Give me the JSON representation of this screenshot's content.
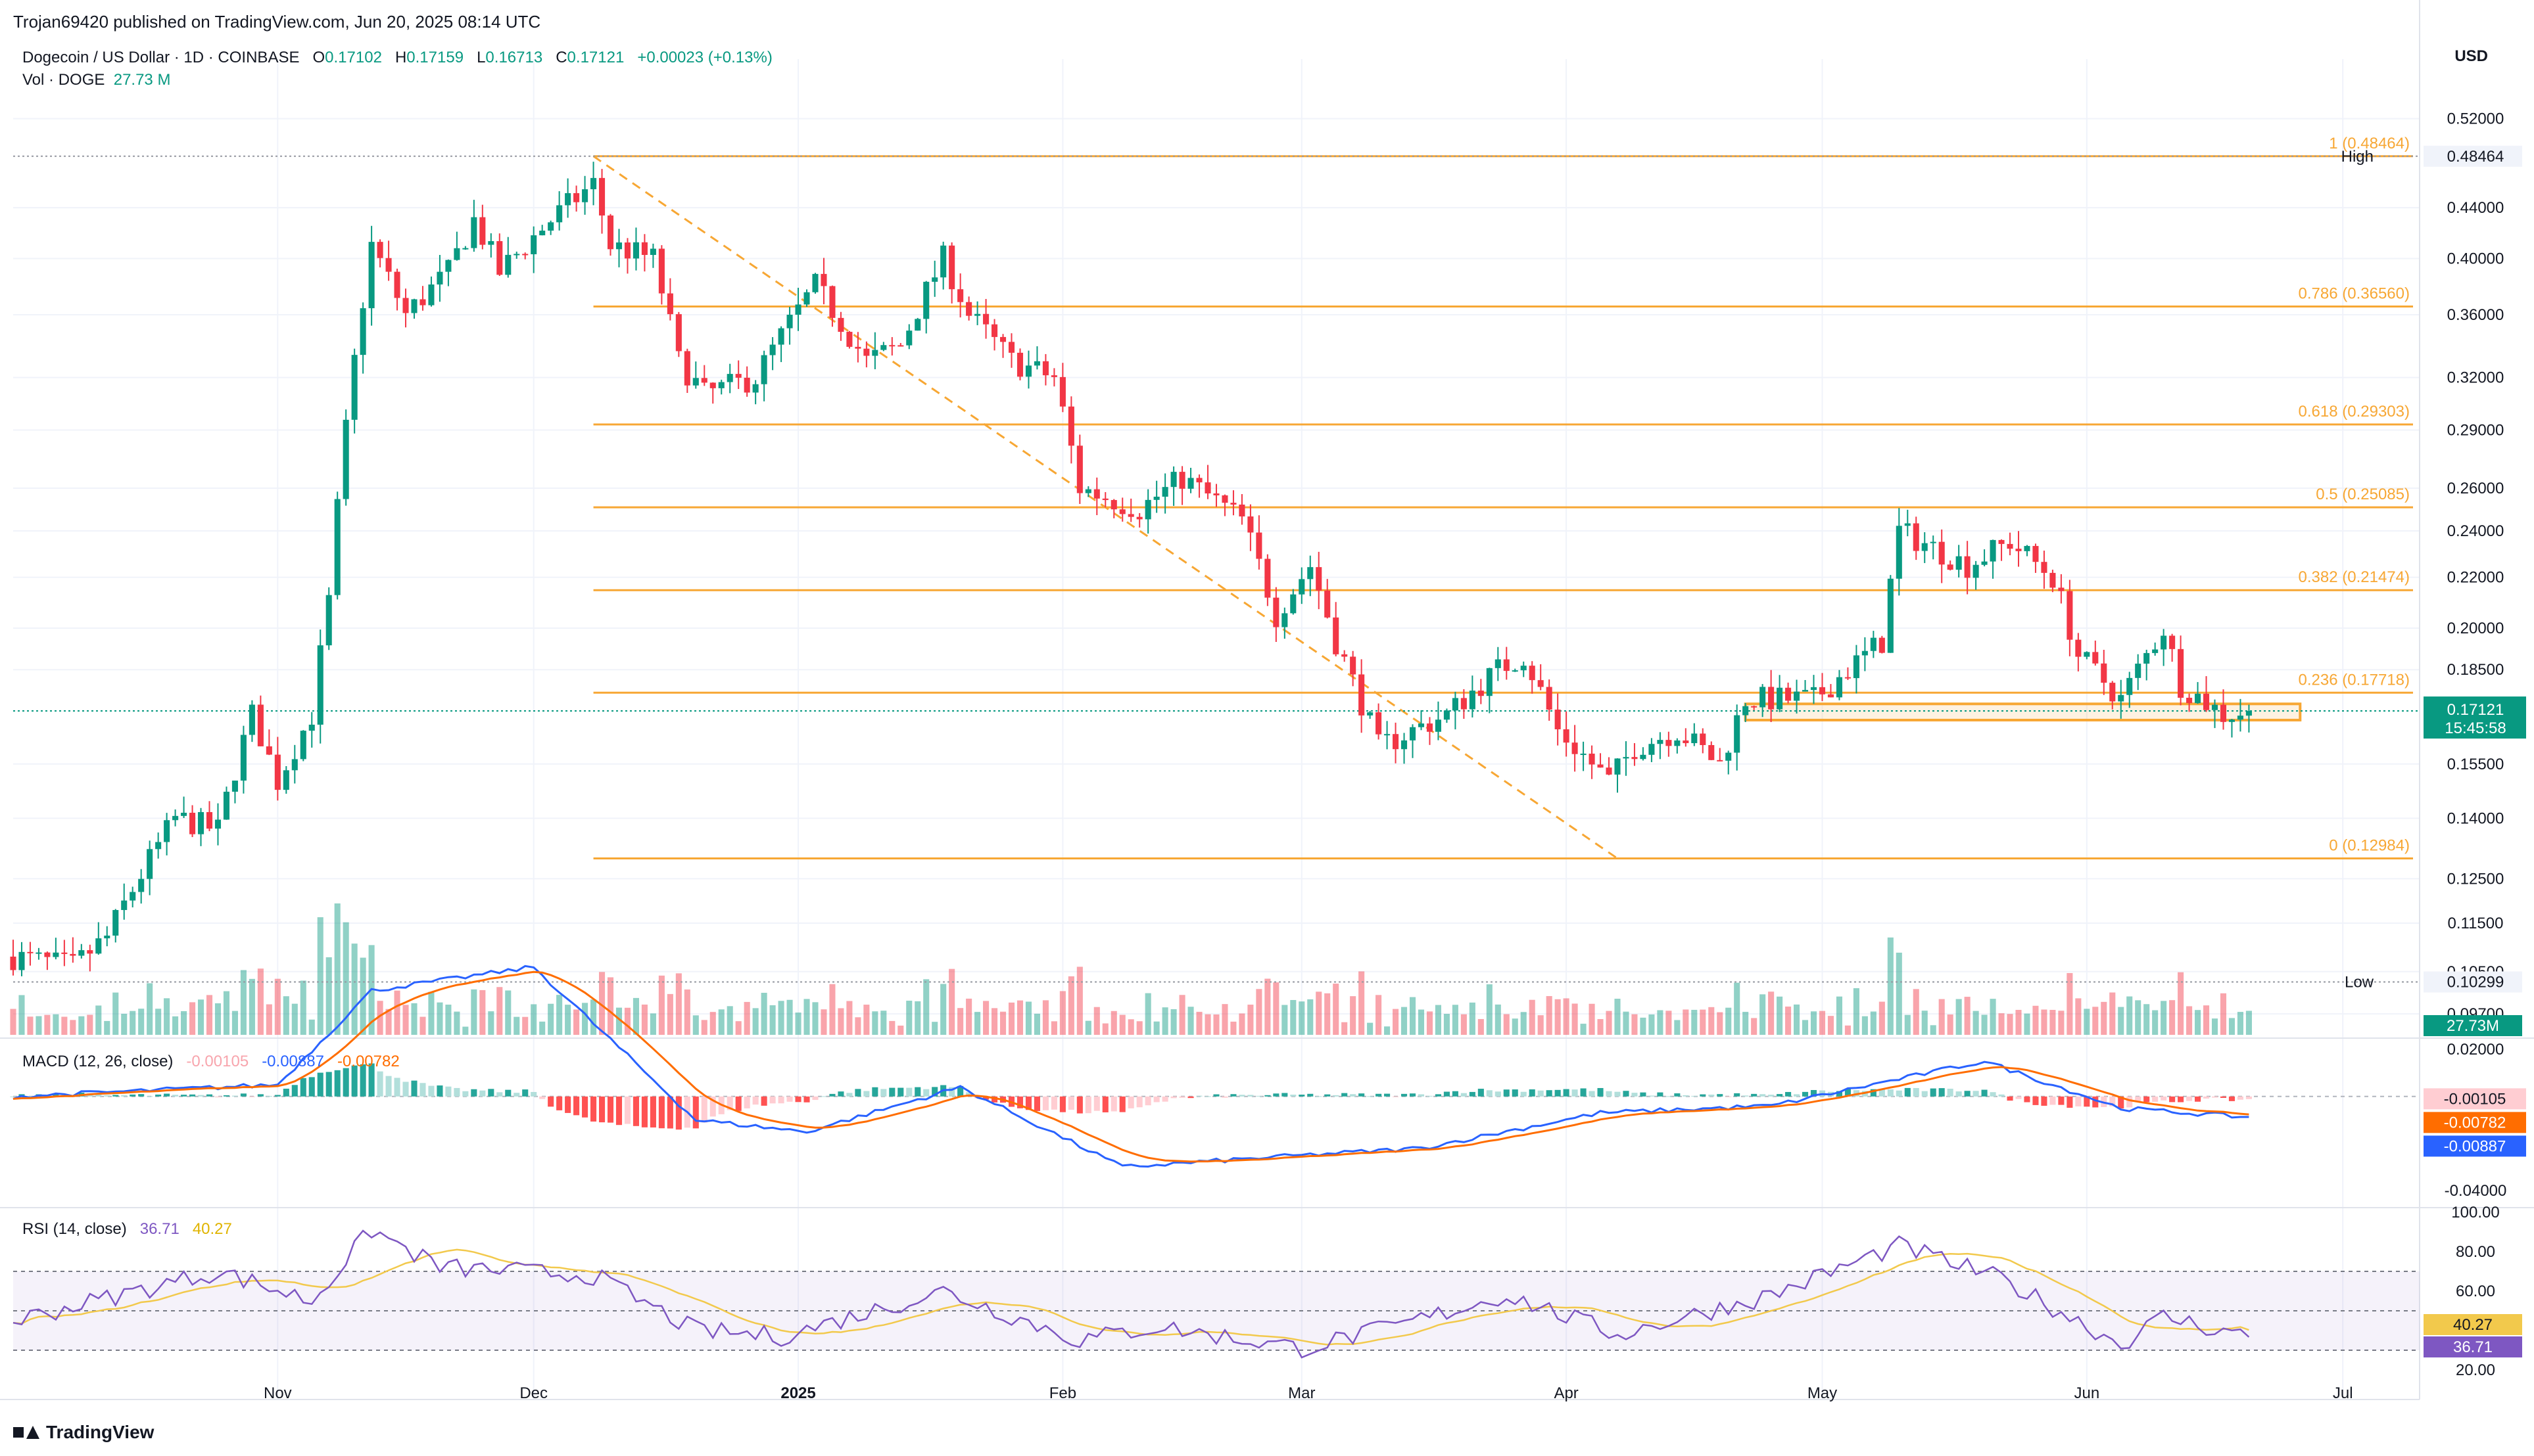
{
  "header": {
    "published": "Trojan69420 published on TradingView.com, Jun 20, 2025 08:14 UTC",
    "symbol": "Dogecoin / US Dollar · 1D · COINBASE",
    "o_label": "O",
    "o": "0.17102",
    "h_label": "H",
    "h": "0.17159",
    "l_label": "L",
    "l": "0.16713",
    "c_label": "C",
    "c": "0.17121",
    "change": "+0.00023 (+0.13%)",
    "vol_label": "Vol · DOGE",
    "vol_value": "27.73 M",
    "currency": "USD",
    "brand": "TradingView"
  },
  "colors": {
    "up": "#089981",
    "down": "#f23645",
    "fib": "#f7a734",
    "macd": "#2962ff",
    "signal": "#ff6d00",
    "rsi": "#7e57c2",
    "rsi_ma": "#f2c94c"
  },
  "chart_data": [
    {
      "type": "candlestick",
      "title": "Dogecoin / US Dollar · 1D · COINBASE",
      "y_axis": {
        "scale": "log",
        "ticks": [
          "0.52000",
          "0.48464",
          "0.44000",
          "0.40000",
          "0.36000",
          "0.32000",
          "0.29000",
          "0.26000",
          "0.24000",
          "0.22000",
          "0.20000",
          "0.18500",
          "0.17121",
          "0.15500",
          "0.14000",
          "0.12500",
          "0.11500",
          "0.10500",
          "0.10299",
          "0.09700"
        ]
      },
      "x_axis": {
        "ticks": [
          "Nov",
          "Dec",
          "2025",
          "Feb",
          "Mar",
          "Apr",
          "May",
          "Jun",
          "Jul"
        ]
      },
      "high_label": "High",
      "high_value": "0.48464",
      "low_label": "Low",
      "low_value": "0.10299",
      "last_price": "0.17121",
      "countdown": "15:45:58",
      "volume_badge": "27.73M",
      "anchors": [
        {
          "date": "2024-10-01",
          "close": 0.108
        },
        {
          "date": "2024-10-08",
          "close": 0.106
        },
        {
          "date": "2024-10-12",
          "close": 0.112
        },
        {
          "date": "2024-10-20",
          "close": 0.14
        },
        {
          "date": "2024-10-25",
          "close": 0.137
        },
        {
          "date": "2024-10-29",
          "close": 0.17
        },
        {
          "date": "2024-11-01",
          "close": 0.15
        },
        {
          "date": "2024-11-05",
          "close": 0.17
        },
        {
          "date": "2024-11-07",
          "close": 0.21
        },
        {
          "date": "2024-11-10",
          "close": 0.33
        },
        {
          "date": "2024-11-12",
          "close": 0.41
        },
        {
          "date": "2024-11-16",
          "close": 0.36
        },
        {
          "date": "2024-11-21",
          "close": 0.39
        },
        {
          "date": "2024-11-24",
          "close": 0.43
        },
        {
          "date": "2024-11-27",
          "close": 0.39
        },
        {
          "date": "2024-12-03",
          "close": 0.43
        },
        {
          "date": "2024-12-08",
          "close": 0.46
        },
        {
          "date": "2024-12-10",
          "close": 0.41
        },
        {
          "date": "2024-12-15",
          "close": 0.4
        },
        {
          "date": "2024-12-18",
          "close": 0.33
        },
        {
          "date": "2024-12-21",
          "close": 0.31
        },
        {
          "date": "2024-12-27",
          "close": 0.32
        },
        {
          "date": "2025-01-03",
          "close": 0.38
        },
        {
          "date": "2025-01-09",
          "close": 0.33
        },
        {
          "date": "2025-01-13",
          "close": 0.34
        },
        {
          "date": "2025-01-18",
          "close": 0.4
        },
        {
          "date": "2025-01-21",
          "close": 0.36
        },
        {
          "date": "2025-01-26",
          "close": 0.33
        },
        {
          "date": "2025-01-31",
          "close": 0.32
        },
        {
          "date": "2025-02-03",
          "close": 0.26
        },
        {
          "date": "2025-02-10",
          "close": 0.25
        },
        {
          "date": "2025-02-15",
          "close": 0.265
        },
        {
          "date": "2025-02-22",
          "close": 0.245
        },
        {
          "date": "2025-02-26",
          "close": 0.205
        },
        {
          "date": "2025-03-02",
          "close": 0.225
        },
        {
          "date": "2025-03-05",
          "close": 0.195
        },
        {
          "date": "2025-03-10",
          "close": 0.16
        },
        {
          "date": "2025-03-18",
          "close": 0.17
        },
        {
          "date": "2025-03-24",
          "close": 0.185
        },
        {
          "date": "2025-03-27",
          "close": 0.19
        },
        {
          "date": "2025-03-31",
          "close": 0.165
        },
        {
          "date": "2025-04-06",
          "close": 0.15
        },
        {
          "date": "2025-04-09",
          "close": 0.16
        },
        {
          "date": "2025-04-14",
          "close": 0.165
        },
        {
          "date": "2025-04-19",
          "close": 0.155
        },
        {
          "date": "2025-04-22",
          "close": 0.175
        },
        {
          "date": "2025-04-30",
          "close": 0.175
        },
        {
          "date": "2025-05-08",
          "close": 0.195
        },
        {
          "date": "2025-05-10",
          "close": 0.24
        },
        {
          "date": "2025-05-18",
          "close": 0.225
        },
        {
          "date": "2025-05-23",
          "close": 0.235
        },
        {
          "date": "2025-05-28",
          "close": 0.22
        },
        {
          "date": "2025-05-31",
          "close": 0.19
        },
        {
          "date": "2025-06-05",
          "close": 0.175
        },
        {
          "date": "2025-06-10",
          "close": 0.2
        },
        {
          "date": "2025-06-12",
          "close": 0.18
        },
        {
          "date": "2025-06-17",
          "close": 0.17
        },
        {
          "date": "2025-06-20",
          "close": 0.17121
        }
      ],
      "fib_levels": [
        {
          "label": "1 (0.48464)",
          "value": 0.48464
        },
        {
          "label": "0.786 (0.36560)",
          "value": 0.3656
        },
        {
          "label": "0.618 (0.29303)",
          "value": 0.29303
        },
        {
          "label": "0.5 (0.25085)",
          "value": 0.25085
        },
        {
          "label": "0.382 (0.21474)",
          "value": 0.21474
        },
        {
          "label": "0.236 (0.17718)",
          "value": 0.17718
        },
        {
          "label": "0 (0.12984)",
          "value": 0.12984
        }
      ],
      "fib_start_date": "2024-12-08",
      "trend_line": [
        {
          "date": "2024-12-08",
          "value": 0.48464
        },
        {
          "date": "2025-04-07",
          "value": 0.12984
        }
      ],
      "support_zone": {
        "from_date": "2025-04-22",
        "to_date": "2025-06-26",
        "low": 0.1683,
        "high": 0.1735
      }
    },
    {
      "type": "line",
      "title": "MACD (12, 26, close)",
      "values": {
        "histogram": "-0.00105",
        "macd": "-0.00887",
        "signal": "-0.00782"
      },
      "y_ticks": [
        "0.02000",
        "-0.04000"
      ],
      "anchors": [
        {
          "date": "2024-10-01",
          "macd": 0.0
        },
        {
          "date": "2024-11-01",
          "macd": 0.005
        },
        {
          "date": "2024-11-12",
          "macd": 0.045
        },
        {
          "date": "2024-12-01",
          "macd": 0.055
        },
        {
          "date": "2024-12-20",
          "macd": -0.01
        },
        {
          "date": "2025-01-02",
          "macd": -0.015
        },
        {
          "date": "2025-01-20",
          "macd": 0.004
        },
        {
          "date": "2025-02-08",
          "macd": -0.03
        },
        {
          "date": "2025-03-01",
          "macd": -0.025
        },
        {
          "date": "2025-03-15",
          "macd": -0.022
        },
        {
          "date": "2025-04-05",
          "macd": -0.007
        },
        {
          "date": "2025-04-25",
          "macd": -0.004
        },
        {
          "date": "2025-05-20",
          "macd": 0.015
        },
        {
          "date": "2025-06-05",
          "macd": -0.005
        },
        {
          "date": "2025-06-20",
          "macd": -0.00887
        }
      ]
    },
    {
      "type": "line",
      "title": "RSI (14, close)",
      "values": {
        "rsi": "36.71",
        "ma": "40.27"
      },
      "y_ticks": [
        "100.00",
        "80.00",
        "60.00",
        "40.27",
        "36.71",
        "20.00"
      ],
      "bands": [
        70,
        50,
        30
      ],
      "anchors": [
        {
          "date": "2024-10-01",
          "rsi": 45
        },
        {
          "date": "2024-10-25",
          "rsi": 70
        },
        {
          "date": "2024-11-05",
          "rsi": 55
        },
        {
          "date": "2024-11-12",
          "rsi": 91
        },
        {
          "date": "2024-11-20",
          "rsi": 72
        },
        {
          "date": "2024-12-08",
          "rsi": 68
        },
        {
          "date": "2024-12-20",
          "rsi": 40
        },
        {
          "date": "2024-12-30",
          "rsi": 37
        },
        {
          "date": "2025-01-18",
          "rsi": 60
        },
        {
          "date": "2025-02-03",
          "rsi": 35
        },
        {
          "date": "2025-02-12",
          "rsi": 42
        },
        {
          "date": "2025-03-01",
          "rsi": 31
        },
        {
          "date": "2025-03-12",
          "rsi": 42
        },
        {
          "date": "2025-03-25",
          "rsi": 58
        },
        {
          "date": "2025-04-07",
          "rsi": 38
        },
        {
          "date": "2025-04-25",
          "rsi": 58
        },
        {
          "date": "2025-05-10",
          "rsi": 83
        },
        {
          "date": "2025-05-22",
          "rsi": 66
        },
        {
          "date": "2025-06-05",
          "rsi": 33
        },
        {
          "date": "2025-06-10",
          "rsi": 47
        },
        {
          "date": "2025-06-20",
          "rsi": 36.71
        }
      ]
    }
  ]
}
